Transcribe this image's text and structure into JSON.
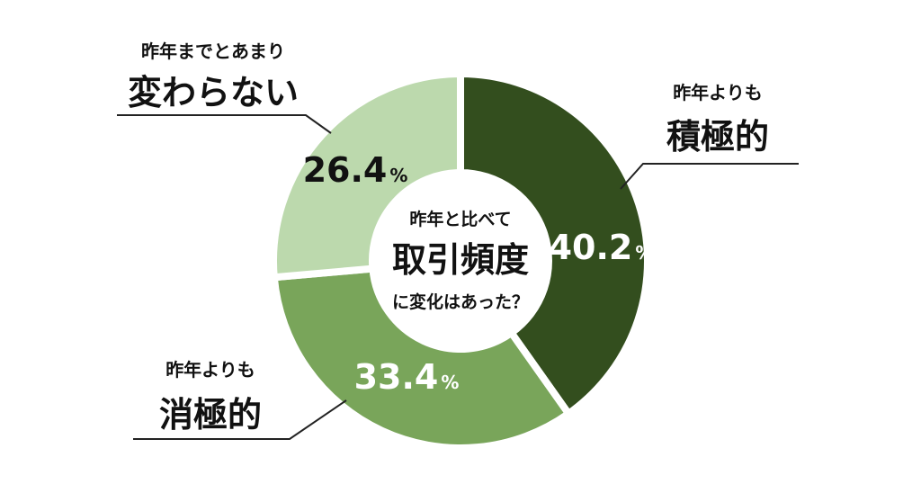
{
  "chart_data": {
    "type": "pie",
    "center_text": {
      "line1": "昨年と比べて",
      "line2": "取引頻度",
      "line3": "に変化はあった？"
    },
    "slices": [
      {
        "label_line1": "昨年よりも",
        "label_line2": "積極的",
        "value": 40.2,
        "value_text": "40.2",
        "unit": "%",
        "color": "#334e1e",
        "text_color": "#ffffff"
      },
      {
        "label_line1": "昨年よりも",
        "label_line2": "消極的",
        "value": 33.4,
        "value_text": "33.4",
        "unit": "%",
        "color": "#79a55a",
        "text_color": "#ffffff"
      },
      {
        "label_line1": "昨年までとあまり",
        "label_line2": "変わらない",
        "value": 26.4,
        "value_text": "26.4",
        "unit": "%",
        "color": "#bcd9ad",
        "text_color": "#111111"
      }
    ]
  }
}
